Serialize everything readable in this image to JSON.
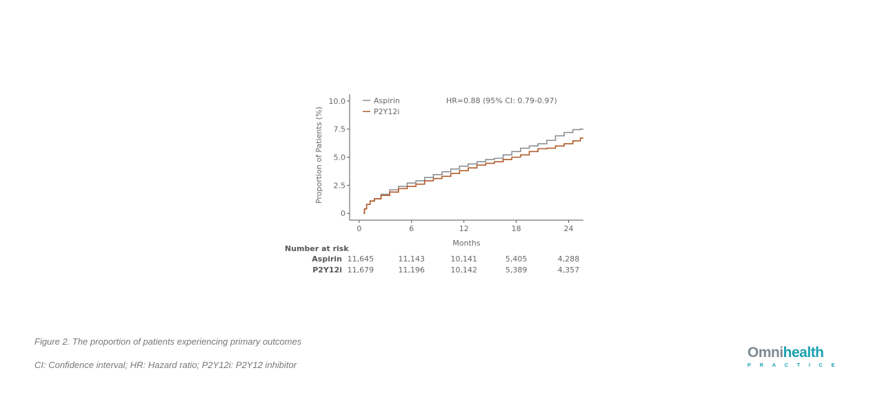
{
  "chart_data": {
    "type": "line",
    "xlabel": "Months",
    "ylabel": "Proportion of Patients (%)",
    "xlim": [
      -1.1,
      25.7
    ],
    "ylim": [
      -0.6,
      10.6
    ],
    "xticks": [
      0,
      6,
      12,
      18,
      24
    ],
    "yticks": [
      0,
      2.5,
      5.0,
      7.5,
      10.0
    ],
    "ytick_labels": [
      "0",
      "2.5",
      "5.0",
      "7.5",
      "10.0"
    ],
    "annotation": "HR=0.88 (95% CI: 0.79-0.97)",
    "legend_position": "top-left",
    "series": [
      {
        "name": "Aspirin",
        "color": "#8a8e94",
        "x": [
          0.5,
          0.7,
          1,
          1.5,
          2,
          3,
          4,
          5,
          6,
          7,
          8,
          9,
          10,
          11,
          12,
          13,
          14,
          15,
          16,
          17,
          18,
          19,
          20,
          21,
          22,
          23,
          24,
          25,
          25.7
        ],
        "y": [
          0,
          0.4,
          0.8,
          1.1,
          1.3,
          1.7,
          2.1,
          2.4,
          2.7,
          2.9,
          3.2,
          3.45,
          3.7,
          3.95,
          4.2,
          4.4,
          4.6,
          4.8,
          4.9,
          5.2,
          5.5,
          5.8,
          6.0,
          6.2,
          6.5,
          6.9,
          7.2,
          7.45,
          7.5
        ]
      },
      {
        "name": "P2Y12i",
        "color": "#b05a28",
        "x": [
          0.5,
          0.7,
          1,
          1.5,
          2,
          3,
          4,
          5,
          6,
          7,
          8,
          9,
          10,
          11,
          12,
          13,
          14,
          15,
          16,
          17,
          18,
          19,
          20,
          21,
          22,
          23,
          24,
          25,
          25.7
        ],
        "y": [
          0,
          0.4,
          0.8,
          1.1,
          1.3,
          1.6,
          1.9,
          2.2,
          2.4,
          2.6,
          2.9,
          3.1,
          3.3,
          3.55,
          3.8,
          4.05,
          4.3,
          4.45,
          4.6,
          4.8,
          5.0,
          5.2,
          5.5,
          5.75,
          5.8,
          6.0,
          6.2,
          6.45,
          6.7
        ]
      }
    ],
    "risk_table": {
      "title": "Number at risk",
      "rows": [
        {
          "label": "Aspirin",
          "values": [
            "11,645",
            "11,143",
            "10,141",
            "5,405",
            "4,288"
          ]
        },
        {
          "label": "P2Y12i",
          "values": [
            "11,679",
            "11,196",
            "10,142",
            "5,389",
            "4,357"
          ]
        }
      ]
    }
  },
  "caption": {
    "title": "Figure 2. The proportion of patients experiencing primary outcomes",
    "note": "CI: Confidence interval; HR: Hazard ratio; P2Y12i: P2Y12 inhibitor"
  },
  "logo": {
    "omni": "Omni",
    "health": "health",
    "sub": "PRACTICE"
  }
}
